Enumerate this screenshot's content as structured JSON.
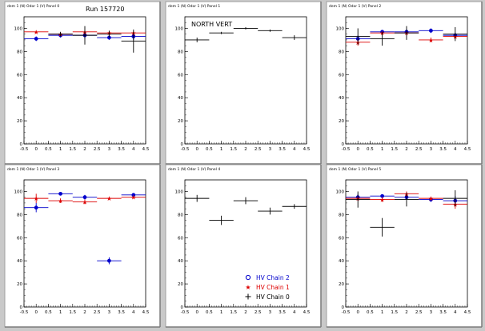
{
  "run_label": "Run 157720",
  "colors": {
    "background": "#c9c9c9",
    "pad": "#ffffff",
    "chain0": "#000000",
    "chain1": "#dd0000",
    "chain2": "#0000cc"
  },
  "legend": {
    "entries": [
      {
        "key": "chain2",
        "label": "HV Chain 2",
        "marker": "open-circle"
      },
      {
        "key": "chain1",
        "label": "HV Chain 1",
        "marker": "star"
      },
      {
        "key": "chain0",
        "label": "HV Chain 0",
        "marker": "cross"
      }
    ]
  },
  "chart_data": [
    {
      "type": "scatter",
      "panel_title": "dem 1 (N) Odor 1 (V) Panel 0",
      "annotation": "",
      "xlim": [
        -0.5,
        4.5
      ],
      "ylim": [
        0,
        110
      ],
      "x_ticks": [
        "-0.5",
        "0",
        "0.5",
        "1",
        "1.5",
        "2",
        "2.5",
        "3",
        "3.5",
        "4",
        "4.5"
      ],
      "y_ticks": [
        "0",
        "20",
        "40",
        "60",
        "80",
        "100"
      ],
      "series": [
        {
          "key": "chain2",
          "points": [
            {
              "x": 0,
              "y": 91,
              "ey": 2
            },
            {
              "x": 1,
              "y": 94,
              "ey": 2
            },
            {
              "x": 2,
              "y": 94,
              "ey": 3
            },
            {
              "x": 3,
              "y": 92,
              "ey": 2
            },
            {
              "x": 4,
              "y": 93,
              "ey": 3
            }
          ]
        },
        {
          "key": "chain1",
          "points": [
            {
              "x": 0,
              "y": 97,
              "ey": 1
            },
            {
              "x": 1,
              "y": 95,
              "ey": 1
            },
            {
              "x": 2,
              "y": 97,
              "ey": 1
            },
            {
              "x": 3,
              "y": 96,
              "ey": 1
            },
            {
              "x": 4,
              "y": 96,
              "ey": 1
            }
          ]
        },
        {
          "key": "chain0",
          "points": [
            {
              "x": 1,
              "y": 95,
              "ey": 2
            },
            {
              "x": 2,
              "y": 94,
              "ey": 8
            },
            {
              "x": 3,
              "y": 95,
              "ey": 3
            },
            {
              "x": 4,
              "y": 89,
              "ey": 10
            }
          ]
        }
      ]
    },
    {
      "type": "scatter",
      "panel_title": "dem 1 (N) Odor 1 (V) Panel 1",
      "annotation": "NORTH VERT",
      "xlim": [
        -0.5,
        4.5
      ],
      "ylim": [
        0,
        110
      ],
      "x_ticks": [
        "-0.5",
        "0",
        "0.5",
        "1",
        "1.5",
        "2",
        "2.5",
        "3",
        "3.5",
        "4",
        "4.5"
      ],
      "y_ticks": [
        "0",
        "20",
        "40",
        "60",
        "80",
        "100"
      ],
      "series": [
        {
          "key": "chain0",
          "points": [
            {
              "x": 0,
              "y": 90,
              "ey": 2
            },
            {
              "x": 1,
              "y": 96,
              "ey": 1
            },
            {
              "x": 2,
              "y": 100,
              "ey": 1
            },
            {
              "x": 3,
              "y": 98,
              "ey": 1
            },
            {
              "x": 4,
              "y": 92,
              "ey": 2
            }
          ]
        }
      ]
    },
    {
      "type": "scatter",
      "panel_title": "dem 1 (N) Odor 1 (V) Panel 2",
      "annotation": "",
      "xlim": [
        -0.5,
        4.5
      ],
      "ylim": [
        0,
        110
      ],
      "x_ticks": [
        "-0.5",
        "0",
        "0.5",
        "1",
        "1.5",
        "2",
        "2.5",
        "3",
        "3.5",
        "4",
        "4.5"
      ],
      "y_ticks": [
        "0",
        "20",
        "40",
        "60",
        "80",
        "100"
      ],
      "series": [
        {
          "key": "chain2",
          "points": [
            {
              "x": 0,
              "y": 91,
              "ey": 3
            },
            {
              "x": 1,
              "y": 97,
              "ey": 1
            },
            {
              "x": 2,
              "y": 97,
              "ey": 2
            },
            {
              "x": 3,
              "y": 98,
              "ey": 2
            },
            {
              "x": 4,
              "y": 94,
              "ey": 2
            }
          ]
        },
        {
          "key": "chain1",
          "points": [
            {
              "x": 0,
              "y": 88,
              "ey": 3
            },
            {
              "x": 1,
              "y": 96,
              "ey": 1
            },
            {
              "x": 2,
              "y": 96,
              "ey": 2
            },
            {
              "x": 3,
              "y": 90,
              "ey": 2
            },
            {
              "x": 4,
              "y": 93,
              "ey": 2
            }
          ]
        },
        {
          "key": "chain0",
          "points": [
            {
              "x": 0,
              "y": 93,
              "ey": 7
            },
            {
              "x": 1,
              "y": 91,
              "ey": 6
            },
            {
              "x": 2,
              "y": 96,
              "ey": 6
            },
            {
              "x": 4,
              "y": 95,
              "ey": 6
            }
          ]
        }
      ]
    },
    {
      "type": "scatter",
      "panel_title": "dem 1 (N) Odor 1 (V) Panel 3",
      "annotation": "",
      "xlim": [
        -0.5,
        4.5
      ],
      "ylim": [
        0,
        110
      ],
      "x_ticks": [
        "-0.5",
        "0",
        "0.5",
        "1",
        "1.5",
        "2",
        "2.5",
        "3",
        "3.5",
        "4",
        "4.5"
      ],
      "y_ticks": [
        "0",
        "20",
        "40",
        "60",
        "80",
        "100"
      ],
      "series": [
        {
          "key": "chain2",
          "points": [
            {
              "x": 0,
              "y": 86,
              "ey": 4
            },
            {
              "x": 1,
              "y": 98,
              "ey": 1
            },
            {
              "x": 2,
              "y": 95,
              "ey": 2
            },
            {
              "x": 3,
              "y": 40,
              "ey": 3
            },
            {
              "x": 4,
              "y": 97,
              "ey": 1
            }
          ]
        },
        {
          "key": "chain1",
          "points": [
            {
              "x": 0,
              "y": 94,
              "ey": 4
            },
            {
              "x": 1,
              "y": 92,
              "ey": 2
            },
            {
              "x": 2,
              "y": 91,
              "ey": 2
            },
            {
              "x": 3,
              "y": 94,
              "ey": 1
            },
            {
              "x": 4,
              "y": 95,
              "ey": 1
            }
          ]
        }
      ]
    },
    {
      "type": "scatter",
      "panel_title": "dem 1 (N) Odor 1 (V) Panel 4",
      "annotation": "",
      "show_legend": true,
      "xlim": [
        -0.5,
        4.5
      ],
      "ylim": [
        0,
        110
      ],
      "x_ticks": [
        "-0.5",
        "0",
        "0.5",
        "1",
        "1.5",
        "2",
        "2.5",
        "3",
        "3.5",
        "4",
        "4.5"
      ],
      "y_ticks": [
        "0",
        "20",
        "40",
        "60",
        "80",
        "100"
      ],
      "series": [
        {
          "key": "chain0",
          "points": [
            {
              "x": 0,
              "y": 94,
              "ey": 3
            },
            {
              "x": 1,
              "y": 75,
              "ey": 4
            },
            {
              "x": 2,
              "y": 92,
              "ey": 3
            },
            {
              "x": 3,
              "y": 83,
              "ey": 3
            },
            {
              "x": 4,
              "y": 87,
              "ey": 2
            }
          ]
        }
      ]
    },
    {
      "type": "scatter",
      "panel_title": "dem 1 (N) Odor 1 (V) Panel 5",
      "annotation": "",
      "xlim": [
        -0.5,
        4.5
      ],
      "ylim": [
        0,
        110
      ],
      "x_ticks": [
        "-0.5",
        "0",
        "0.5",
        "1",
        "1.5",
        "2",
        "2.5",
        "3",
        "3.5",
        "4",
        "4.5"
      ],
      "y_ticks": [
        "0",
        "20",
        "40",
        "60",
        "80",
        "100"
      ],
      "series": [
        {
          "key": "chain2",
          "points": [
            {
              "x": 0,
              "y": 95,
              "ey": 3
            },
            {
              "x": 1,
              "y": 96,
              "ey": 1
            },
            {
              "x": 2,
              "y": 95,
              "ey": 2
            },
            {
              "x": 3,
              "y": 93,
              "ey": 2
            },
            {
              "x": 4,
              "y": 92,
              "ey": 4
            }
          ]
        },
        {
          "key": "chain1",
          "points": [
            {
              "x": 0,
              "y": 94,
              "ey": 2
            },
            {
              "x": 1,
              "y": 93,
              "ey": 2
            },
            {
              "x": 2,
              "y": 98,
              "ey": 2
            },
            {
              "x": 3,
              "y": 94,
              "ey": 1
            },
            {
              "x": 4,
              "y": 89,
              "ey": 4
            }
          ]
        },
        {
          "key": "chain0",
          "points": [
            {
              "x": 0,
              "y": 93,
              "ey": 7
            },
            {
              "x": 1,
              "y": 69,
              "ey": 8
            },
            {
              "x": 2,
              "y": 93,
              "ey": 6
            },
            {
              "x": 4,
              "y": 94,
              "ey": 7
            }
          ]
        }
      ]
    }
  ]
}
